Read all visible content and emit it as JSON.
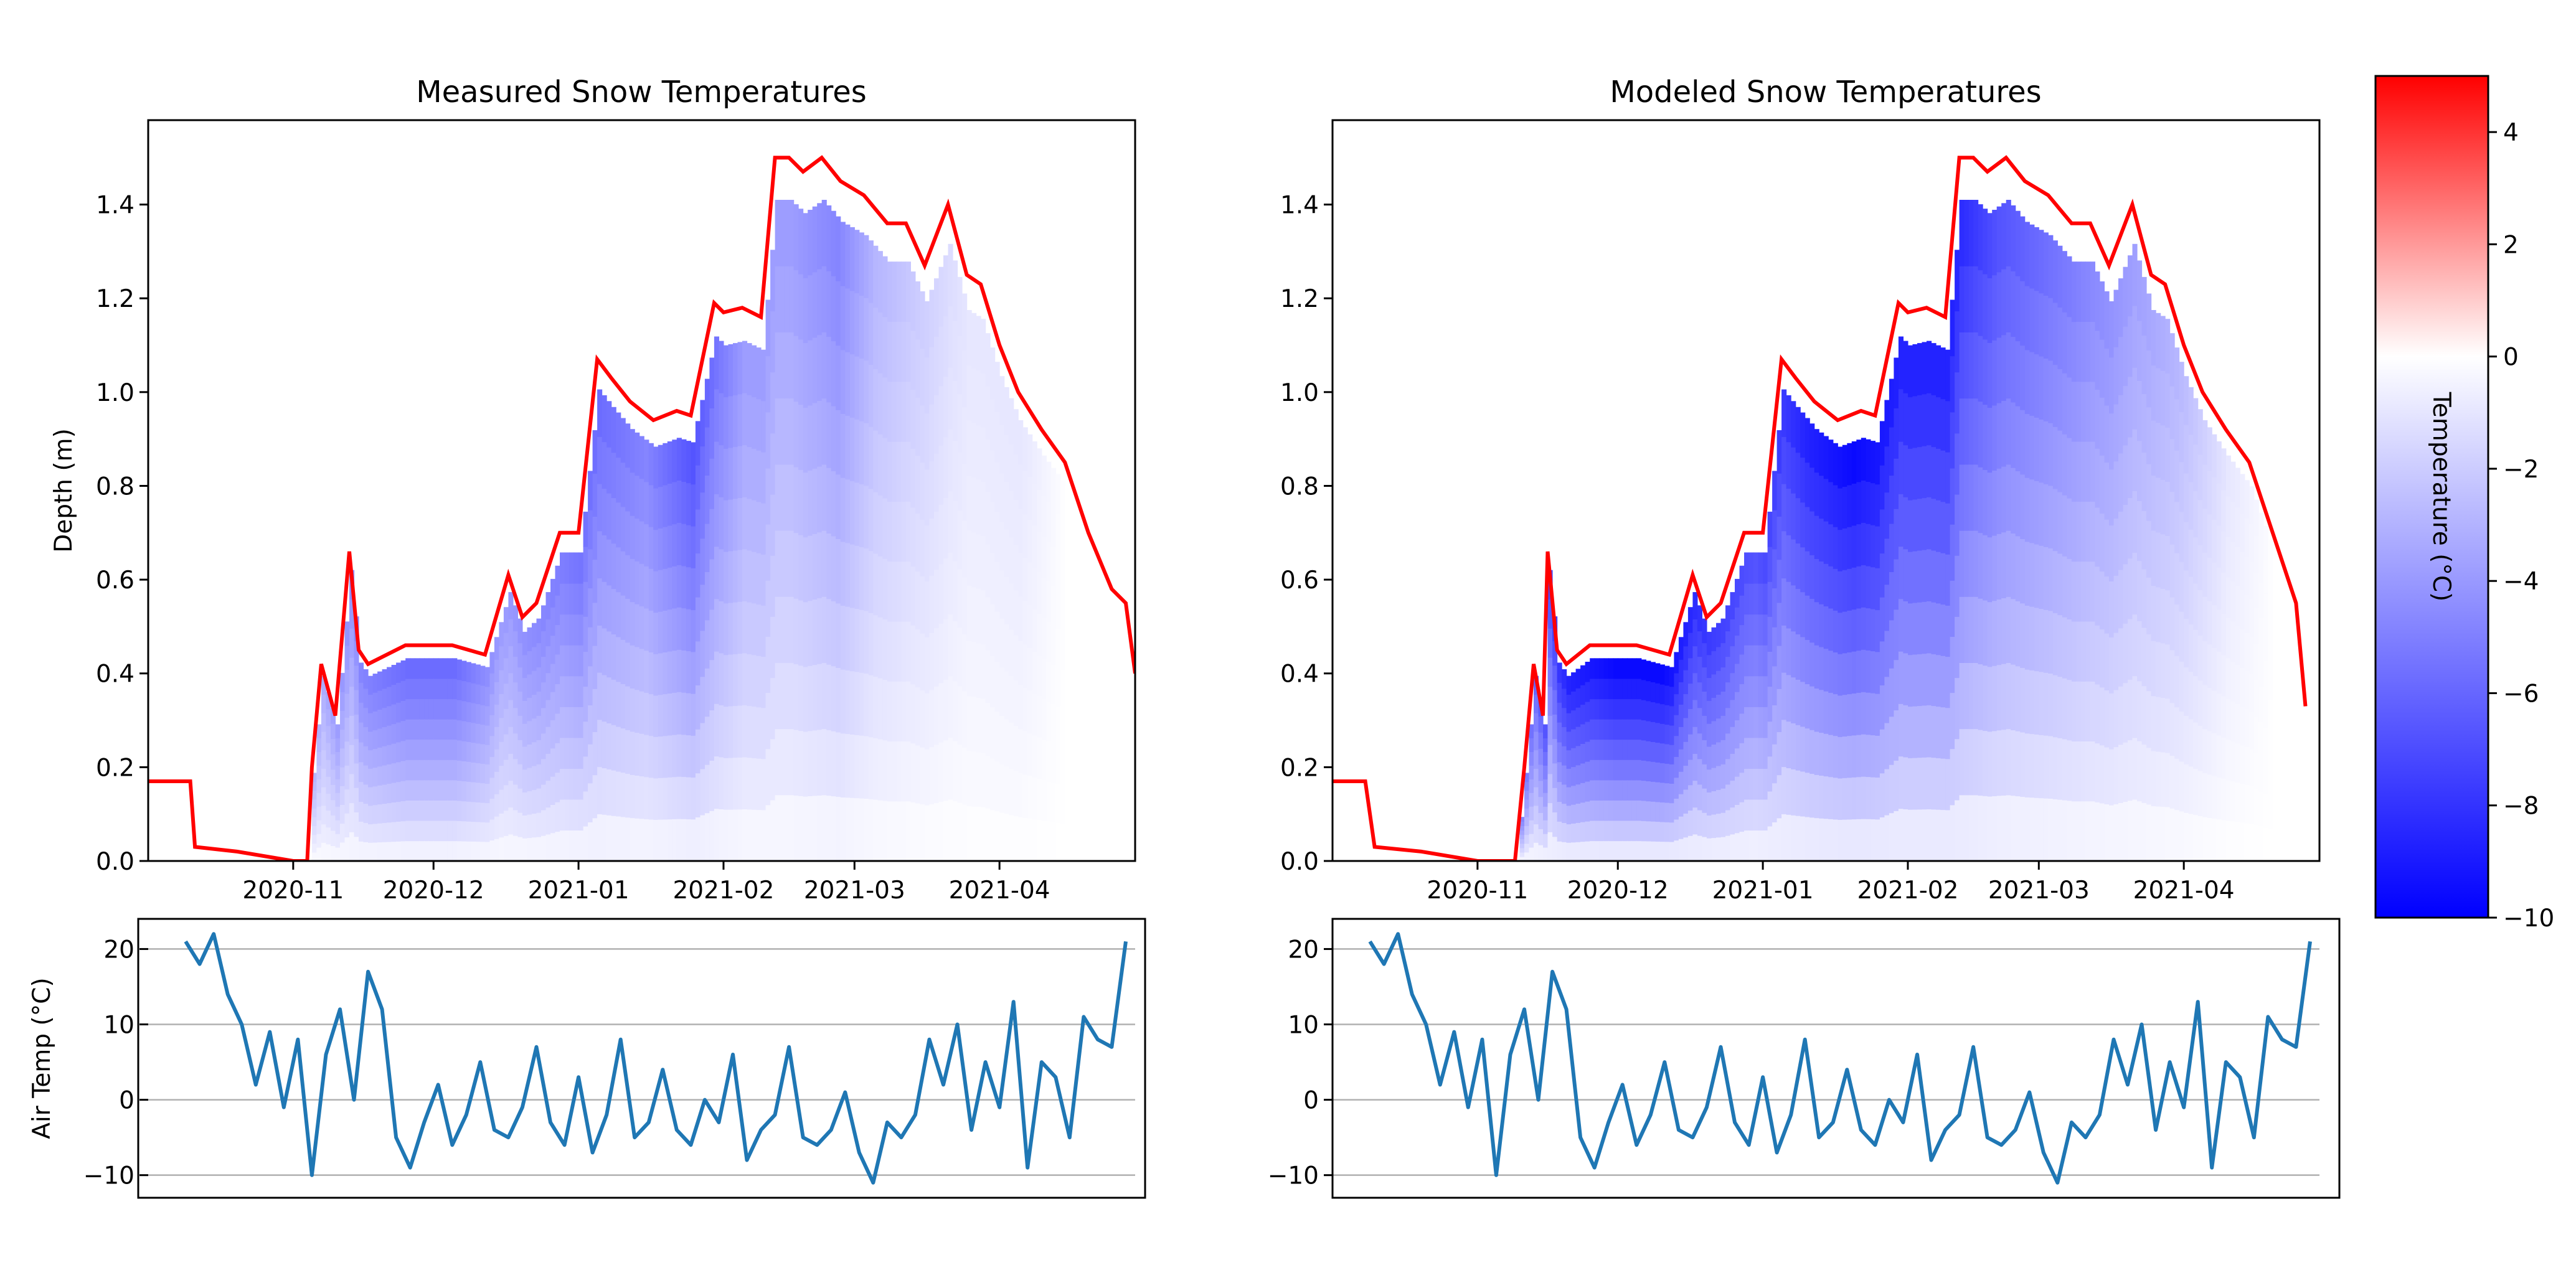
{
  "colors": {
    "snow_top_line": "#ff0000",
    "air_temp_line": "#1f77b4",
    "colormap": [
      "#0000ff",
      "#ffffff",
      "#ff0000"
    ],
    "grid": "#b0b0b0"
  },
  "chart_data": [
    {
      "type": "heatmap",
      "panel": "measured",
      "title": "Measured Snow Temperatures",
      "xlabel": "",
      "ylabel": "Depth (m)",
      "x_range": [
        "2020-10-01",
        "2021-04-30"
      ],
      "ylim": [
        0,
        1.58
      ],
      "x_ticks": [
        "2020-11",
        "2020-12",
        "2021-01",
        "2021-02",
        "2021-03",
        "2021-04"
      ],
      "y_ticks": [
        "0.0",
        "0.2",
        "0.4",
        "0.6",
        "0.8",
        "1.0",
        "1.2",
        "1.4"
      ],
      "snow_height_series": {
        "dates": [
          "2020-10-01",
          "2020-10-10",
          "2020-10-11",
          "2020-10-20",
          "2020-11-01",
          "2020-11-04",
          "2020-11-05",
          "2020-11-07",
          "2020-11-10",
          "2020-11-13",
          "2020-11-15",
          "2020-11-17",
          "2020-11-25",
          "2020-12-05",
          "2020-12-12",
          "2020-12-17",
          "2020-12-20",
          "2020-12-23",
          "2020-12-28",
          "2021-01-01",
          "2021-01-05",
          "2021-01-08",
          "2021-01-12",
          "2021-01-17",
          "2021-01-22",
          "2021-01-25",
          "2021-01-30",
          "2021-02-01",
          "2021-02-05",
          "2021-02-09",
          "2021-02-12",
          "2021-02-15",
          "2021-02-18",
          "2021-02-22",
          "2021-02-26",
          "2021-03-03",
          "2021-03-08",
          "2021-03-12",
          "2021-03-16",
          "2021-03-21",
          "2021-03-25",
          "2021-03-28",
          "2021-04-01",
          "2021-04-05",
          "2021-04-10",
          "2021-04-15",
          "2021-04-20",
          "2021-04-25",
          "2021-04-28",
          "2021-04-30"
        ],
        "depth_m": [
          0.17,
          0.17,
          0.03,
          0.02,
          0.0,
          0.0,
          0.2,
          0.42,
          0.31,
          0.66,
          0.45,
          0.42,
          0.46,
          0.46,
          0.44,
          0.61,
          0.52,
          0.55,
          0.7,
          0.7,
          1.07,
          1.03,
          0.98,
          0.94,
          0.96,
          0.95,
          1.19,
          1.17,
          1.18,
          1.16,
          1.5,
          1.5,
          1.47,
          1.5,
          1.45,
          1.42,
          1.36,
          1.36,
          1.27,
          1.4,
          1.25,
          1.23,
          1.1,
          1.0,
          0.92,
          0.85,
          0.7,
          0.58,
          0.55,
          0.4
        ]
      },
      "temperature_profile": {
        "dates": [
          "2020-11-05",
          "2020-11-15",
          "2020-11-25",
          "2020-12-05",
          "2020-12-15",
          "2020-12-25",
          "2021-01-05",
          "2021-01-15",
          "2021-01-25",
          "2021-02-05",
          "2021-02-15",
          "2021-02-25",
          "2021-03-05",
          "2021-03-15",
          "2021-03-25",
          "2021-04-05",
          "2021-04-15",
          "2021-04-25"
        ],
        "column_top_temp_c": [
          -3,
          -5,
          -6,
          -6,
          -4,
          -5,
          -6,
          -5,
          -7,
          -4,
          -4,
          -5,
          -3,
          -2,
          -1,
          -1,
          0,
          0
        ]
      }
    },
    {
      "type": "heatmap",
      "panel": "modeled",
      "title": "Modeled Snow Temperatures",
      "xlabel": "",
      "ylabel": "",
      "x_range": [
        "2020-10-01",
        "2021-04-30"
      ],
      "ylim": [
        0,
        1.58
      ],
      "x_ticks": [
        "2020-11",
        "2020-12",
        "2021-01",
        "2021-02",
        "2021-03",
        "2021-04"
      ],
      "y_ticks": [
        "0.0",
        "0.2",
        "0.4",
        "0.6",
        "0.8",
        "1.0",
        "1.2",
        "1.4"
      ],
      "snow_height_series": {
        "dates": [
          "2020-10-01",
          "2020-10-08",
          "2020-10-10",
          "2020-10-20",
          "2020-11-01",
          "2020-11-09",
          "2020-11-11",
          "2020-11-13",
          "2020-11-15",
          "2020-11-16",
          "2020-11-18",
          "2020-11-20",
          "2020-11-25",
          "2020-12-05",
          "2020-12-12",
          "2020-12-17",
          "2020-12-20",
          "2020-12-23",
          "2020-12-28",
          "2021-01-01",
          "2021-01-05",
          "2021-01-08",
          "2021-01-12",
          "2021-01-17",
          "2021-01-22",
          "2021-01-25",
          "2021-01-30",
          "2021-02-01",
          "2021-02-05",
          "2021-02-09",
          "2021-02-12",
          "2021-02-15",
          "2021-02-18",
          "2021-02-22",
          "2021-02-26",
          "2021-03-03",
          "2021-03-08",
          "2021-03-12",
          "2021-03-16",
          "2021-03-21",
          "2021-03-25",
          "2021-03-28",
          "2021-04-01",
          "2021-04-05",
          "2021-04-10",
          "2021-04-15",
          "2021-04-20",
          "2021-04-25",
          "2021-04-27"
        ],
        "depth_m": [
          0.17,
          0.17,
          0.03,
          0.02,
          0.0,
          0.0,
          0.2,
          0.42,
          0.31,
          0.66,
          0.45,
          0.42,
          0.46,
          0.46,
          0.44,
          0.61,
          0.52,
          0.55,
          0.7,
          0.7,
          1.07,
          1.03,
          0.98,
          0.94,
          0.96,
          0.95,
          1.19,
          1.17,
          1.18,
          1.16,
          1.5,
          1.5,
          1.47,
          1.5,
          1.45,
          1.42,
          1.36,
          1.36,
          1.27,
          1.4,
          1.25,
          1.23,
          1.1,
          1.0,
          0.92,
          0.85,
          0.7,
          0.55,
          0.33
        ]
      },
      "temperature_profile": {
        "dates": [
          "2020-11-10",
          "2020-11-20",
          "2020-11-30",
          "2020-12-10",
          "2020-12-20",
          "2020-12-30",
          "2021-01-10",
          "2021-01-20",
          "2021-01-30",
          "2021-02-10",
          "2021-02-20",
          "2021-03-01",
          "2021-03-10",
          "2021-03-20",
          "2021-03-30",
          "2021-04-10",
          "2021-04-20"
        ],
        "column_top_temp_c": [
          -5,
          -9,
          -10,
          -10,
          -8,
          -7,
          -9,
          -10,
          -9,
          -9,
          -7,
          -6,
          -5,
          -4,
          -3,
          -1,
          0
        ]
      }
    },
    {
      "type": "line",
      "panel": "measured_air",
      "title": "",
      "xlabel": "",
      "ylabel": "Air Temp (°C)",
      "x_range": [
        "2020-10-01",
        "2021-04-30"
      ],
      "ylim": [
        -13,
        24
      ],
      "y_ticks": [
        "20",
        "10",
        "0",
        "−10"
      ],
      "grid": "horizontal",
      "series": [
        {
          "x": [
            "2020-10-09",
            "2020-10-12",
            "2020-10-15",
            "2020-10-18",
            "2020-10-21",
            "2020-10-24",
            "2020-10-27",
            "2020-10-30",
            "2020-11-02",
            "2020-11-05",
            "2020-11-08",
            "2020-11-11",
            "2020-11-14",
            "2020-11-17",
            "2020-11-20",
            "2020-11-23",
            "2020-11-26",
            "2020-11-29",
            "2020-12-02",
            "2020-12-05",
            "2020-12-08",
            "2020-12-11",
            "2020-12-14",
            "2020-12-17",
            "2020-12-20",
            "2020-12-23",
            "2020-12-26",
            "2020-12-29",
            "2021-01-01",
            "2021-01-04",
            "2021-01-07",
            "2021-01-10",
            "2021-01-13",
            "2021-01-16",
            "2021-01-19",
            "2021-01-22",
            "2021-01-25",
            "2021-01-28",
            "2021-01-31",
            "2021-02-03",
            "2021-02-06",
            "2021-02-09",
            "2021-02-12",
            "2021-02-15",
            "2021-02-18",
            "2021-02-21",
            "2021-02-24",
            "2021-02-27",
            "2021-03-02",
            "2021-03-05",
            "2021-03-08",
            "2021-03-11",
            "2021-03-14",
            "2021-03-17",
            "2021-03-20",
            "2021-03-23",
            "2021-03-26",
            "2021-03-29",
            "2021-04-01",
            "2021-04-04",
            "2021-04-07",
            "2021-04-10",
            "2021-04-13",
            "2021-04-16",
            "2021-04-19",
            "2021-04-22",
            "2021-04-25",
            "2021-04-28"
          ],
          "y": [
            21,
            18,
            22,
            14,
            10,
            2,
            9,
            -1,
            8,
            -10,
            6,
            12,
            0,
            17,
            12,
            -5,
            -9,
            -3,
            2,
            -6,
            -2,
            5,
            -4,
            -5,
            -1,
            7,
            -3,
            -6,
            3,
            -7,
            -2,
            8,
            -5,
            -3,
            4,
            -4,
            -6,
            0,
            -3,
            6,
            -8,
            -4,
            -2,
            7,
            -5,
            -6,
            -4,
            1,
            -7,
            -11,
            -3,
            -5,
            -2,
            8,
            2,
            10,
            -4,
            5,
            -1,
            13,
            -9,
            5,
            3,
            -5,
            11,
            8,
            7,
            21
          ]
        }
      ]
    },
    {
      "type": "line",
      "panel": "modeled_air",
      "title": "",
      "xlabel": "",
      "ylabel": "",
      "x_range": [
        "2020-10-01",
        "2021-04-30"
      ],
      "ylim": [
        -13,
        24
      ],
      "y_ticks": [
        "20",
        "10",
        "0",
        "−10"
      ],
      "grid": "horizontal",
      "series": [
        {
          "x": [
            "2020-10-09",
            "2020-10-12",
            "2020-10-15",
            "2020-10-18",
            "2020-10-21",
            "2020-10-24",
            "2020-10-27",
            "2020-10-30",
            "2020-11-02",
            "2020-11-05",
            "2020-11-08",
            "2020-11-11",
            "2020-11-14",
            "2020-11-17",
            "2020-11-20",
            "2020-11-23",
            "2020-11-26",
            "2020-11-29",
            "2020-12-02",
            "2020-12-05",
            "2020-12-08",
            "2020-12-11",
            "2020-12-14",
            "2020-12-17",
            "2020-12-20",
            "2020-12-23",
            "2020-12-26",
            "2020-12-29",
            "2021-01-01",
            "2021-01-04",
            "2021-01-07",
            "2021-01-10",
            "2021-01-13",
            "2021-01-16",
            "2021-01-19",
            "2021-01-22",
            "2021-01-25",
            "2021-01-28",
            "2021-01-31",
            "2021-02-03",
            "2021-02-06",
            "2021-02-09",
            "2021-02-12",
            "2021-02-15",
            "2021-02-18",
            "2021-02-21",
            "2021-02-24",
            "2021-02-27",
            "2021-03-02",
            "2021-03-05",
            "2021-03-08",
            "2021-03-11",
            "2021-03-14",
            "2021-03-17",
            "2021-03-20",
            "2021-03-23",
            "2021-03-26",
            "2021-03-29",
            "2021-04-01",
            "2021-04-04",
            "2021-04-07",
            "2021-04-10",
            "2021-04-13",
            "2021-04-16",
            "2021-04-19",
            "2021-04-22",
            "2021-04-25",
            "2021-04-28"
          ],
          "y": [
            21,
            18,
            22,
            14,
            10,
            2,
            9,
            -1,
            8,
            -10,
            6,
            12,
            0,
            17,
            12,
            -5,
            -9,
            -3,
            2,
            -6,
            -2,
            5,
            -4,
            -5,
            -1,
            7,
            -3,
            -6,
            3,
            -7,
            -2,
            8,
            -5,
            -3,
            4,
            -4,
            -6,
            0,
            -3,
            6,
            -8,
            -4,
            -2,
            7,
            -5,
            -6,
            -4,
            1,
            -7,
            -11,
            -3,
            -5,
            -2,
            8,
            2,
            10,
            -4,
            5,
            -1,
            13,
            -9,
            5,
            3,
            -5,
            11,
            8,
            7,
            21
          ]
        }
      ]
    },
    {
      "type": "colorbar",
      "label": "Temperature (°C)",
      "range": [
        -10,
        5
      ],
      "ticks": [
        "4",
        "2",
        "0",
        "−2",
        "−4",
        "−6",
        "−8",
        "−10"
      ]
    }
  ]
}
